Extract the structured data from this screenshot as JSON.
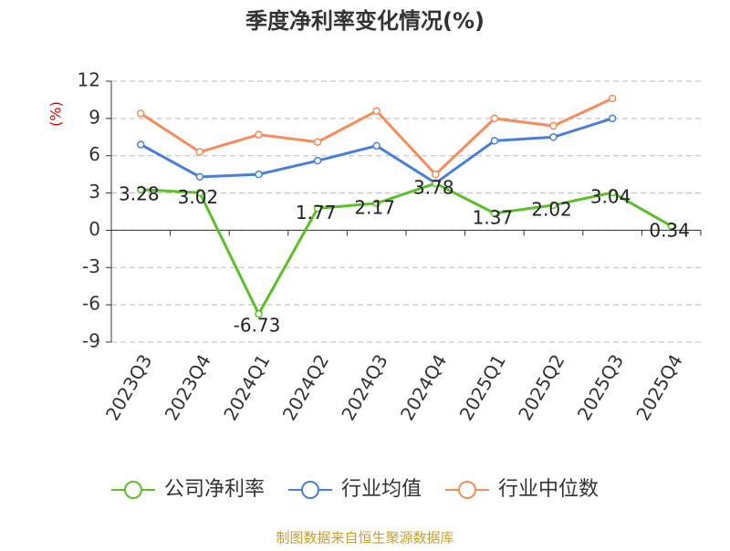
{
  "chart_data": {
    "type": "line",
    "title": "季度净利率变化情况(%)",
    "y_label": "(%)",
    "categories": [
      "2023Q3",
      "2023Q4",
      "2024Q1",
      "2024Q2",
      "2024Q3",
      "2024Q4",
      "2025Q1",
      "2025Q2",
      "2025Q3",
      "2025Q4"
    ],
    "series": [
      {
        "name": "公司净利率",
        "color": "#5cbf2a",
        "values": [
          3.28,
          3.02,
          -6.73,
          1.77,
          2.17,
          3.78,
          1.37,
          2.02,
          3.04,
          0.34
        ],
        "show_labels": true
      },
      {
        "name": "行业均值",
        "color": "#4a7fd8",
        "values": [
          6.9,
          4.3,
          4.5,
          5.6,
          6.8,
          3.8,
          7.2,
          7.5,
          9.0,
          null
        ],
        "show_labels": false
      },
      {
        "name": "行业中位数",
        "color": "#f58c5a",
        "values": [
          9.4,
          6.3,
          7.7,
          7.1,
          9.6,
          4.5,
          9.0,
          8.4,
          10.6,
          null
        ],
        "show_labels": false
      }
    ],
    "ylim": [
      -9,
      12
    ],
    "yticks": [
      -9,
      -6,
      -3,
      0,
      3,
      6,
      9,
      12
    ],
    "grid": true,
    "source": "制图数据来自恒生聚源数据库"
  }
}
